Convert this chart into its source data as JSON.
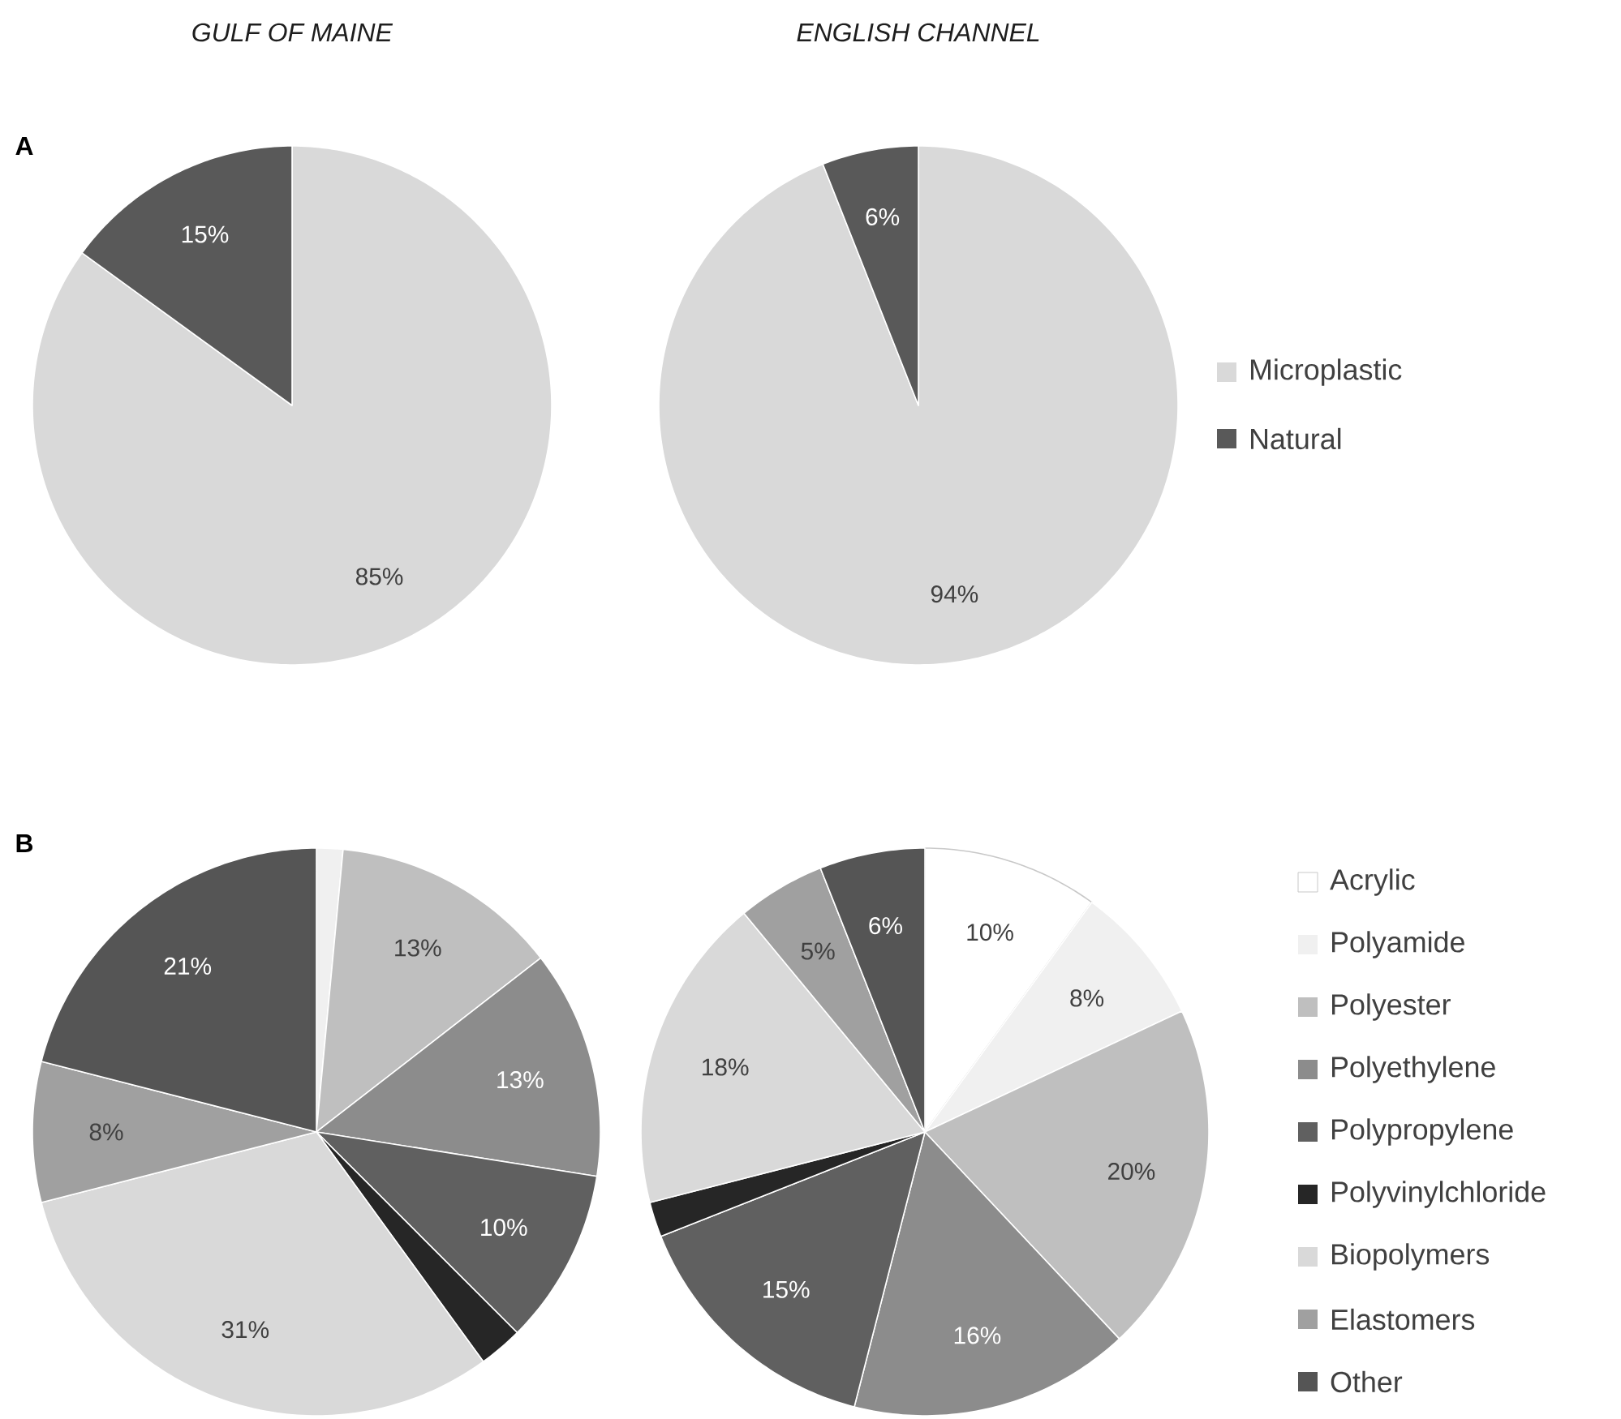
{
  "chart_data": [
    {
      "type": "pie",
      "title": "*GULF OF MAINE*",
      "annotations": [
        "**A**"
      ],
      "categories": [
        null,
        null
      ],
      "values": [
        85,
        15
      ],
      "colors": [
        "#d9d9d9",
        "#595959"
      ],
      "value_labels": [
        "85%",
        "15%"
      ],
      "legend": false
    },
    {
      "type": "pie",
      "title": "*ENGLISH CHANNEL*",
      "categories": [
        "Microplastic",
        "Natural"
      ],
      "values": [
        94,
        6
      ],
      "colors": [
        "#d9d9d9",
        "#595959"
      ],
      "value_labels": [
        "94%",
        "6%"
      ],
      "legend": "right"
    },
    {
      "type": "pie",
      "annotations": [
        "**B**"
      ],
      "categories": [
        null,
        null,
        null,
        null,
        null,
        null,
        null,
        null,
        null
      ],
      "values": [
        0,
        1.5,
        13,
        13,
        10,
        2.5,
        31,
        8,
        21
      ],
      "colors": [
        "#ffffff",
        "#f0f0f0",
        "#bfbfbf",
        "#8c8c8c",
        "#606060",
        "#262626",
        "#d9d9d9",
        "#a0a0a0",
        "#555555"
      ],
      "value_labels": [
        null,
        null,
        "13%",
        "13%",
        "10%",
        null,
        "31%",
        "8%",
        "21%"
      ],
      "legend": false
    },
    {
      "type": "pie",
      "categories": [
        "Acrylic",
        "Polyamide",
        "Polyester",
        "Polyethylene",
        "Polypropylene",
        "Polyvinylchloride",
        "Biopolymers",
        "Elastomers",
        "Other"
      ],
      "values": [
        10,
        8,
        20,
        16,
        15,
        2,
        18,
        5,
        6
      ],
      "colors": [
        "#ffffff",
        "#f0f0f0",
        "#bfbfbf",
        "#8c8c8c",
        "#606060",
        "#262626",
        "#d9d9d9",
        "#a0a0a0",
        "#555555"
      ],
      "value_labels": [
        "10%",
        "8%",
        "20%",
        "16%",
        "15%",
        null,
        "18%",
        "5%",
        "6%"
      ],
      "legend": "right"
    }
  ]
}
